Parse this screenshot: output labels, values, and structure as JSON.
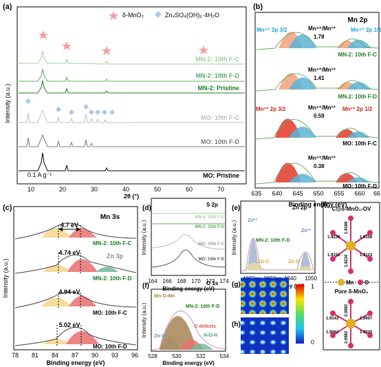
{
  "panels": {
    "a": {
      "label": "(a)",
      "xlabel": "2θ (°)",
      "ylabel": "Intensity (a.u.)",
      "xticks": [
        "10",
        "20",
        "30",
        "40",
        "50",
        "60",
        "70"
      ],
      "legend": {
        "mno2": "δ-MnO₂",
        "zso": "Zn₄SO₄(OH)₆·4H₂O"
      },
      "current_density": "0.1 A g⁻¹",
      "traces": [
        {
          "label": "MN-2: 10th F-C",
          "color": "#9ccf9c"
        },
        {
          "label": "MN-2: 10th F-D",
          "color": "#5fa85f"
        },
        {
          "label": "MN-2: Pristine",
          "color": "#1f7a1f"
        },
        {
          "label": "MO: 10th F-C",
          "color": "#bdbdbd"
        },
        {
          "label": "MO: 10th F-D",
          "color": "#7a7a7a"
        },
        {
          "label": "MO: Pristine",
          "color": "#000000"
        }
      ]
    },
    "b": {
      "label": "(b)",
      "title": "Mn 2p",
      "xlabel": "Binding energy (eV)",
      "ylabel": "Intensity (a.u.)",
      "xticks": [
        "635",
        "640",
        "645",
        "650",
        "655",
        "660",
        "66"
      ],
      "ratio_label": "Mn⁴⁺/Mn³⁺",
      "mn4_32": "Mn⁴⁺ 2p 3/2",
      "mn4_12": "Mn⁴⁺ 2p 1/2",
      "mn3_32": "Mn³⁺ 2p 3/2",
      "mn3_12": "Mn³⁺ 2p 1/2",
      "spectra": [
        {
          "sample": "MN-2: 10th F-C",
          "ratio": "1.78"
        },
        {
          "sample": "MN-2: 10th F-D",
          "ratio": "1.41"
        },
        {
          "sample": "MO: 10th F-C",
          "ratio": "0.59"
        },
        {
          "sample": "MO: 10th F-D",
          "ratio": "0.38"
        }
      ]
    },
    "c": {
      "label": "(c)",
      "title": "Mn 3s",
      "xlabel": "Binding energy (eV)",
      "ylabel": "Intensity (a.u.)",
      "xticks": [
        "78",
        "81",
        "84",
        "87",
        "90",
        "93",
        "96"
      ],
      "zn3p": "Zn 3p",
      "spectra": [
        {
          "sample": "MN-2: 10th F-C",
          "splitting": "4.7 eV"
        },
        {
          "sample": "MN-2: 10th F-D",
          "splitting": "4.74 eV"
        },
        {
          "sample": "MO: 10th F-C",
          "splitting": "4.94 eV"
        },
        {
          "sample": "MO: 10th F-D",
          "splitting": "5.02 eV"
        }
      ]
    },
    "d": {
      "label": "(d)",
      "title": "S 2p",
      "xlabel": "Binding energy (eV)",
      "ylabel": "Intensity (a.u.)",
      "xticks": [
        "164",
        "166",
        "168",
        "170",
        "172",
        "174"
      ],
      "traces": [
        "MN-2: 10th F-C",
        "MN-2: 10th F-D",
        "MO: 10th F-C",
        "MO: 10th F-D"
      ]
    },
    "e": {
      "label": "(e)",
      "title": "Zn 2p",
      "xlabel": "Binding energy (eV)",
      "ylabel": "Intensity (a.u.)",
      "xticks": [
        "1020",
        "1030",
        "1040",
        "1050"
      ],
      "sample": "MN-2: 10th F-D",
      "zn2a": "Zn²⁺",
      "zn2b": "Zn²⁺",
      "zno_a": "Zn-O",
      "zno_b": "Zn-O"
    },
    "f": {
      "label": "(f)",
      "title": "O 1s",
      "xlabel": "Binding energy (eV)",
      "ylabel": "Intensity (a.u.)",
      "xticks": [
        "528",
        "530",
        "532",
        "534"
      ],
      "sample": "MN-2: 10th F-D",
      "mnomn": "Mn-O-Mn",
      "odef": "O defects",
      "hoh": "H-O-H",
      "zno": "Zn-O"
    },
    "g": {
      "label": "(g)"
    },
    "h": {
      "label": "(h)"
    },
    "colorbar": {
      "max": "1",
      "min": "0"
    },
    "i": {
      "label": "(i)",
      "top_title": "C@δ-MnO₂-OV",
      "bottom_title": "Pure δ-MnO₂",
      "legend_mn": "Mn",
      "legend_o": "O",
      "top_bonds": [
        "1.9239",
        "1.9156",
        "1.9152",
        "1.9123",
        "1.9189",
        "1.9210"
      ],
      "bottom_bonds": [
        "2.0892",
        "1.9143",
        "1.9007",
        "1.9062",
        "1.9035",
        "2.0882"
      ]
    }
  }
}
